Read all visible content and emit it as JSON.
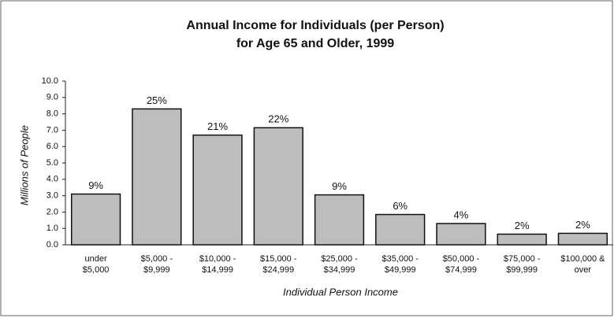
{
  "chart_data": {
    "type": "bar",
    "title": "Annual Income for Individuals (per Person)",
    "subtitle": "for Age 65 and Older, 1999",
    "y_label": "Millions of People",
    "x_label": "Individual Person Income",
    "categories": [
      "under\n$5,000",
      "$5,000 -\n$9,999",
      "$10,000 -\n$14,999",
      "$15,000 -\n$24,999",
      "$25,000 -\n$34,999",
      "$35,000 -\n$49,999",
      "$50,000 -\n$74,999",
      "$75,000 -\n$99,999",
      "$100,000 &\nover"
    ],
    "values": [
      3.1,
      8.3,
      6.7,
      7.15,
      3.05,
      1.85,
      1.3,
      0.65,
      0.7
    ],
    "percent_labels": [
      "9%",
      "25%",
      "21%",
      "22%",
      "9%",
      "6%",
      "4%",
      "2%",
      "2%"
    ],
    "color": "#bdbdbd",
    "ylim": [
      0,
      10
    ],
    "yticks": [
      {
        "value": 0,
        "label": "0.0"
      },
      {
        "value": 1,
        "label": "1.0"
      },
      {
        "value": 2,
        "label": "2.0"
      },
      {
        "value": 3,
        "label": "3.0"
      },
      {
        "value": 4,
        "label": "4.0"
      },
      {
        "value": 5,
        "label": "5.0"
      },
      {
        "value": 6,
        "label": "6.0"
      },
      {
        "value": 7,
        "label": "7.0"
      },
      {
        "value": 8,
        "label": "8.0"
      },
      {
        "value": 9,
        "label": "9.0"
      },
      {
        "value": 10,
        "label": "10.0"
      }
    ],
    "grid": false
  }
}
